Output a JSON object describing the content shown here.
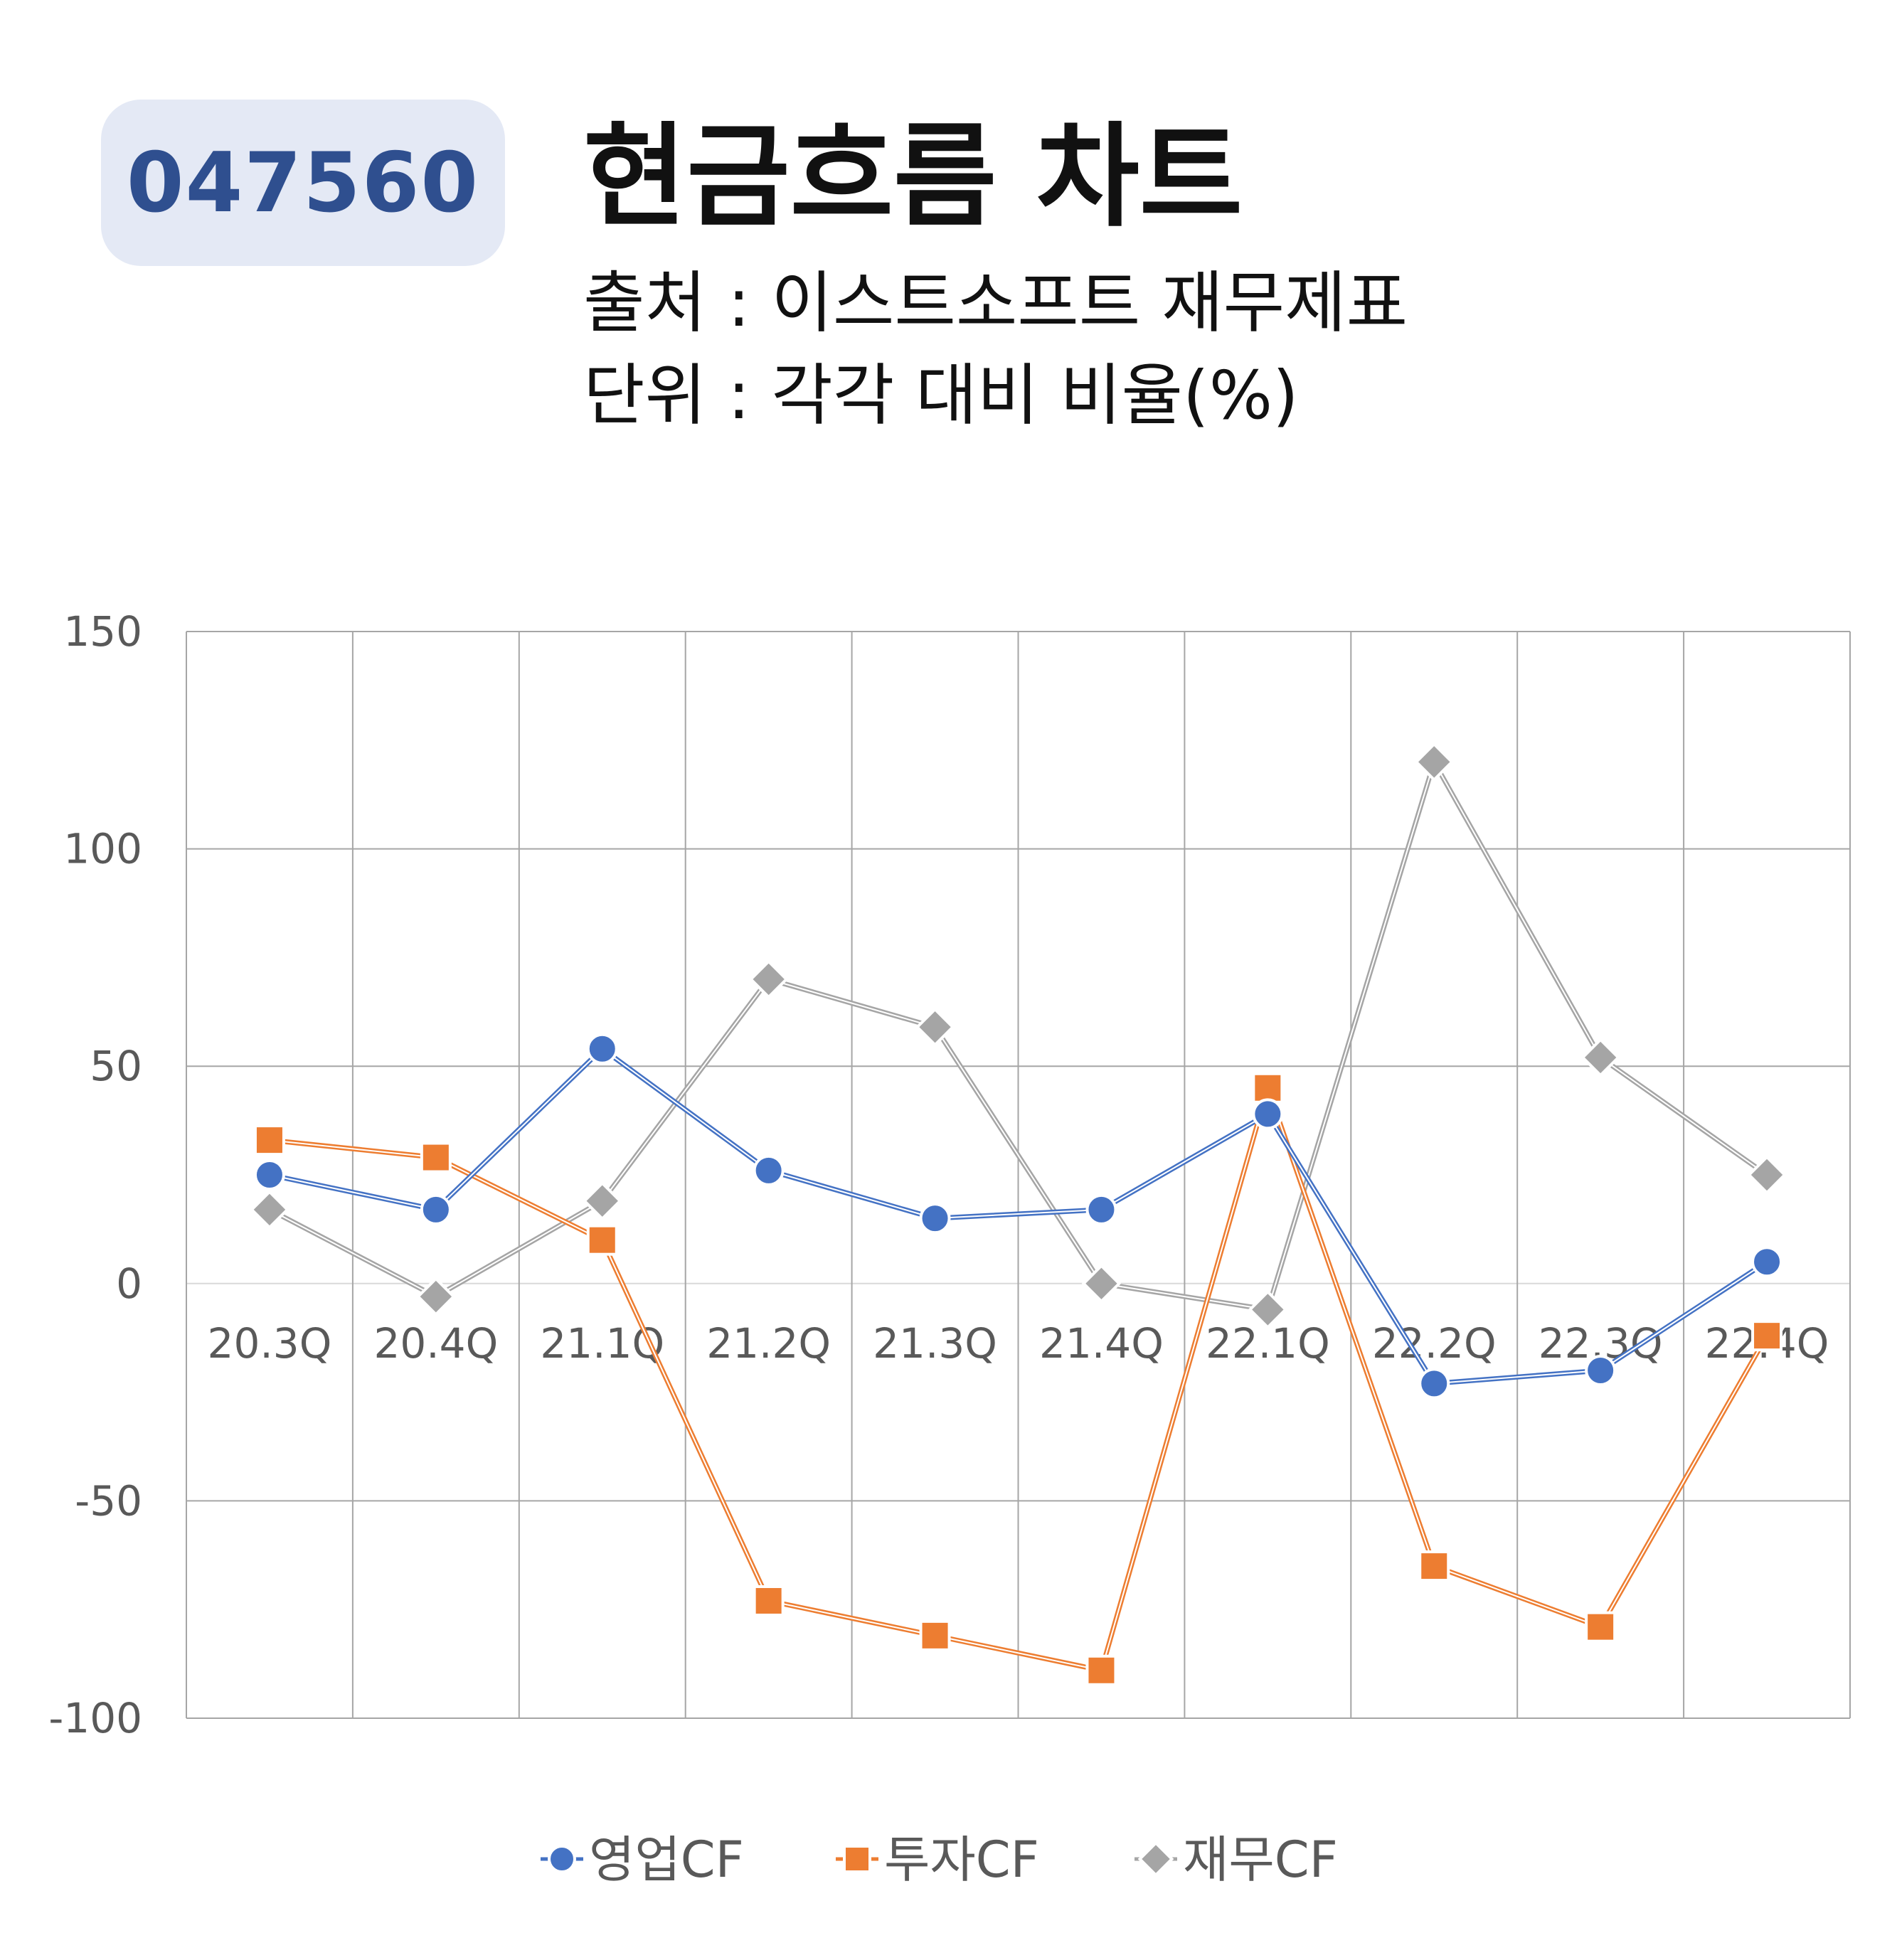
{
  "header": {
    "code": "047560",
    "title": "현금흐름 차트",
    "source": "출처 : 이스트소프트 재무제표",
    "unit": "단위 : 각각 대비 비율(%)"
  },
  "colors": {
    "series_0": "#4472c4",
    "series_1": "#ed7d31",
    "series_2": "#a5a5a5",
    "grid": "#a6a6a6",
    "badge_bg": "#e4e9f5",
    "badge_text": "#2f4f8f"
  },
  "chart_data": {
    "type": "line",
    "categories": [
      "20.3Q",
      "20.4Q",
      "21.1Q",
      "21.2Q",
      "21.3Q",
      "21.4Q",
      "22.1Q",
      "22.2Q",
      "22.3Q",
      "22.4Q"
    ],
    "y_ticks": [
      "150",
      "100",
      "50",
      "0",
      "-50",
      "-100"
    ],
    "ylim": [
      -100,
      150
    ],
    "grid": true,
    "legend_position": "bottom",
    "series": [
      {
        "name": "영업CF",
        "marker": "circle",
        "values": [
          25,
          17,
          54,
          26,
          15,
          17,
          39,
          -23,
          -20,
          5
        ]
      },
      {
        "name": "투자CF",
        "marker": "square",
        "values": [
          33,
          29,
          10,
          -73,
          -81,
          -89,
          45,
          -65,
          -79,
          -12
        ]
      },
      {
        "name": "재무CF",
        "marker": "diamond",
        "values": [
          17,
          -3,
          19,
          70,
          59,
          0,
          -6,
          120,
          52,
          25
        ]
      }
    ]
  }
}
